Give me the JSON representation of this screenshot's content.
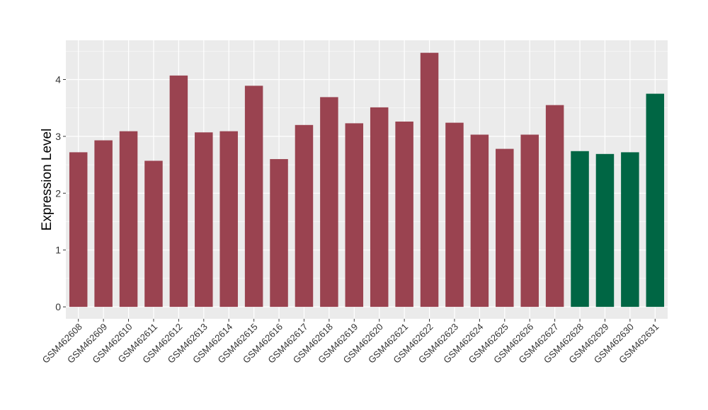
{
  "chart_data": {
    "type": "bar",
    "title": "",
    "xlabel": "",
    "ylabel": "Expression Level",
    "ylim": [
      -0.21,
      4.69
    ],
    "yticks": [
      0,
      1,
      2,
      3,
      4
    ],
    "grid": true,
    "legend": "none",
    "categories": [
      "GSM462608",
      "GSM462609",
      "GSM462610",
      "GSM462611",
      "GSM462612",
      "GSM462613",
      "GSM462614",
      "GSM462615",
      "GSM462616",
      "GSM462617",
      "GSM462618",
      "GSM462619",
      "GSM462620",
      "GSM462621",
      "GSM462622",
      "GSM462623",
      "GSM462624",
      "GSM462625",
      "GSM462626",
      "GSM462627",
      "GSM462628",
      "GSM462629",
      "GSM462630",
      "GSM462631"
    ],
    "values": [
      2.72,
      2.93,
      3.09,
      2.57,
      4.07,
      3.07,
      3.09,
      3.89,
      2.6,
      3.2,
      3.69,
      3.23,
      3.51,
      3.26,
      4.47,
      3.24,
      3.03,
      2.78,
      3.03,
      3.55,
      2.74,
      2.69,
      2.72,
      3.75
    ],
    "groups": [
      "a",
      "a",
      "a",
      "a",
      "a",
      "a",
      "a",
      "a",
      "a",
      "a",
      "a",
      "a",
      "a",
      "a",
      "a",
      "a",
      "a",
      "a",
      "a",
      "a",
      "b",
      "b",
      "b",
      "b"
    ],
    "colors": {
      "a": "#9a4350",
      "b": "#006644",
      "panel": "#ebebeb",
      "grid": "#ffffff"
    }
  }
}
